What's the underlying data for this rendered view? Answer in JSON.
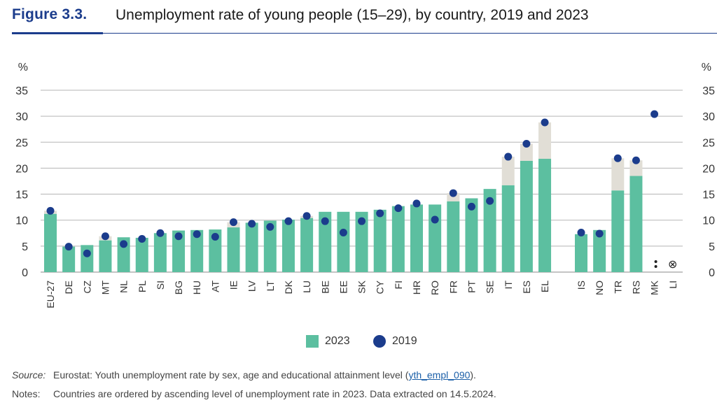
{
  "figure": {
    "number": "Figure 3.3.",
    "title": "Unemployment rate of young people (15–29), by country, 2019 and 2023"
  },
  "legend": {
    "bar_label": "2023",
    "dot_label": "2019"
  },
  "colors": {
    "bar": "#5cbfa0",
    "dot": "#1b3c8c",
    "gap": "#e1ded6",
    "grid": "#b5b5b5",
    "accent": "#1b3c8c"
  },
  "source": {
    "label": "Source:",
    "text_before": "Eurostat: Youth unemployment rate by sex, age and educational attainment level (",
    "link_text": "yth_empl_090",
    "text_after": ")."
  },
  "notes": {
    "label": "Notes:",
    "text": "Countries are ordered by ascending level of unemployment rate in 2023. Data extracted on 14.5.2024."
  },
  "chart_data": {
    "type": "bar",
    "title": "Unemployment rate of young people (15–29), by country, 2019 and 2023",
    "ylabel": "%",
    "ylim": [
      0,
      35
    ],
    "yticks": [
      0,
      5,
      10,
      15,
      20,
      25,
      30,
      35
    ],
    "grid": true,
    "axis_unit_left": "%",
    "axis_unit_right": "%",
    "groups": [
      [
        "EU-27",
        "DE",
        "CZ",
        "MT",
        "NL",
        "PL",
        "SI",
        "BG",
        "HU",
        "AT",
        "IE",
        "LV",
        "LT",
        "DK",
        "LU",
        "BE",
        "EE",
        "SK",
        "CY",
        "FI",
        "HR",
        "RO",
        "FR",
        "PT",
        "SE",
        "IT",
        "ES",
        "EL"
      ],
      [
        "IS",
        "NO",
        "TR",
        "RS",
        "MK",
        "LI"
      ]
    ],
    "categories": [
      "EU-27",
      "DE",
      "CZ",
      "MT",
      "NL",
      "PL",
      "SI",
      "BG",
      "HU",
      "AT",
      "IE",
      "LV",
      "LT",
      "DK",
      "LU",
      "BE",
      "EE",
      "SK",
      "CY",
      "FI",
      "HR",
      "RO",
      "FR",
      "PT",
      "SE",
      "IT",
      "ES",
      "EL",
      "IS",
      "NO",
      "TR",
      "RS",
      "MK",
      "LI"
    ],
    "series": [
      {
        "name": "2023",
        "kind": "bar",
        "values": [
          11.2,
          4.9,
          5.2,
          6.1,
          6.7,
          6.6,
          7.5,
          8.0,
          8.1,
          8.2,
          8.6,
          9.5,
          9.9,
          10.1,
          10.4,
          11.6,
          11.6,
          11.6,
          12.0,
          12.7,
          13.0,
          13.0,
          13.6,
          14.2,
          16.0,
          16.7,
          21.4,
          21.8,
          7.3,
          8.1,
          15.7,
          18.5,
          null,
          null
        ]
      },
      {
        "name": "2019",
        "kind": "dot",
        "values": [
          11.8,
          4.9,
          3.6,
          6.9,
          5.4,
          6.4,
          7.5,
          6.9,
          7.3,
          6.8,
          9.6,
          9.3,
          8.7,
          9.8,
          10.8,
          9.8,
          7.6,
          9.8,
          11.3,
          12.3,
          13.2,
          10.1,
          15.2,
          12.6,
          13.7,
          22.2,
          24.7,
          28.8,
          7.6,
          7.4,
          21.9,
          21.5,
          30.4,
          null
        ]
      }
    ],
    "special_marks": {
      "MK": "••",
      "LI": "⊗"
    }
  }
}
